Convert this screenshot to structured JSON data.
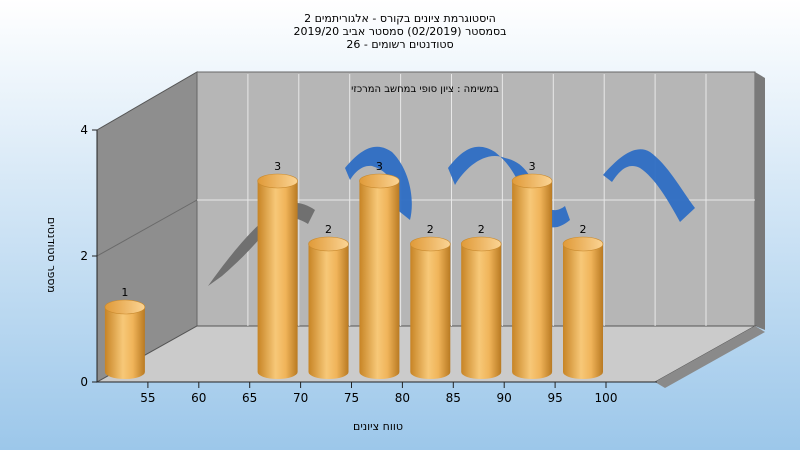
{
  "title_lines": [
    "היסטוגרמת ציונים בקורס - אלגוריתמים 2",
    "בסמסטר (02/2019) סמסטר אביב 2019/20",
    "סטודנטים רשומים - 26"
  ],
  "annotation": "במשימה : ציון סופי במחשב המרכזי",
  "colors": {
    "background_top": "#ffffff",
    "background_bottom": "#9cc7ea",
    "wall": "#b4b4b4",
    "left_wall": "#8c8c8c",
    "floor": "#cacaca",
    "bar": "#e8a848",
    "curve_blue": "#2e6ec4",
    "curve_gray": "#707070"
  },
  "chart_data": {
    "type": "bar",
    "title": "היסטוגרמת ציונים בקורס - אלגוריתמים 2",
    "xlabel": "טווח ציונים",
    "ylabel": "מספר סטודנטים",
    "x_ticks": [
      "55",
      "60",
      "65",
      "70",
      "75",
      "80",
      "85",
      "90",
      "95",
      "100"
    ],
    "y_ticks": [
      "0",
      "2",
      "4"
    ],
    "ylim": [
      0,
      4
    ],
    "grid": true,
    "series": [
      {
        "values": [
          {
            "x": "55",
            "value": 1
          },
          {
            "x": "70",
            "value": 3
          },
          {
            "x": "75",
            "value": 2
          },
          {
            "x": "80",
            "value": 3
          },
          {
            "x": "85",
            "value": 2
          },
          {
            "x": "90",
            "value": 2
          },
          {
            "x": "95",
            "value": 3
          },
          {
            "x": "100",
            "value": 2
          }
        ]
      }
    ]
  }
}
